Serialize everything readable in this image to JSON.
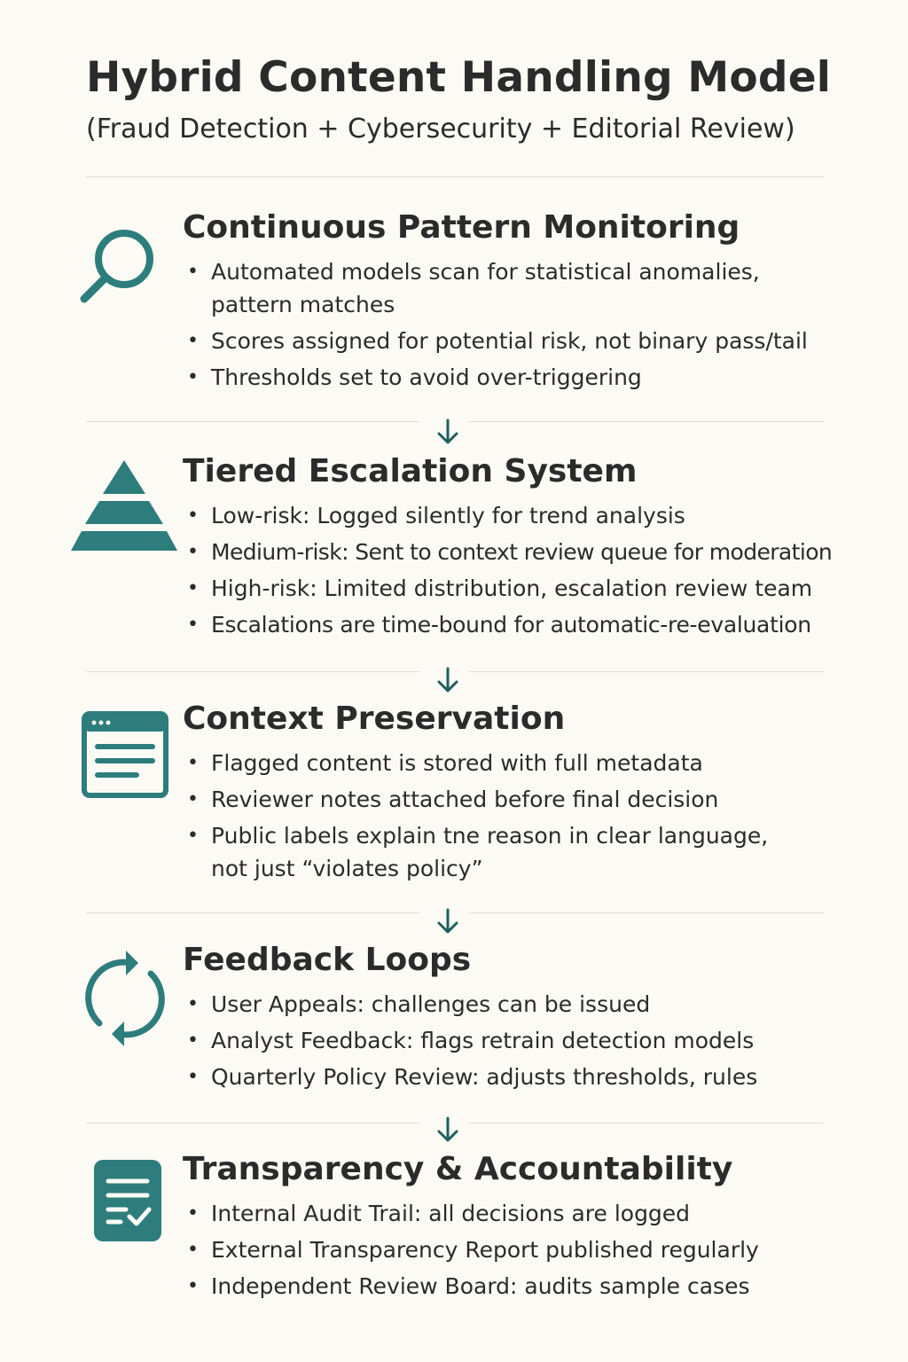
{
  "header": {
    "title": "Hybrid Content Handling Model",
    "subtitle": "(Fraud Detection + Cybersecurity + Editorial Review)"
  },
  "colors": {
    "accent": "#2e7d7d",
    "text": "#2b2b2b",
    "background": "#fbfaf5",
    "divider": "#dcdcd6"
  },
  "sections": [
    {
      "icon": "magnifier-icon",
      "title": "Continuous Pattern Monitoring",
      "bullets": [
        "Automated models scan for statistical anomalies, pattern matches",
        "Scores assigned for potential risk, not binary pass/tail",
        "Thresholds set to avoid over-triggering"
      ]
    },
    {
      "icon": "pyramid-icon",
      "title": "Tiered Escalation System",
      "bullets": [
        "Low-risk: Logged silently for trend analysis",
        "Medium-risk: Sent to context review queue for moderation",
        "High-risk: Limited distribution, escalation review team",
        "Escalations are time-bound for automatic-re-evaluation"
      ]
    },
    {
      "icon": "document-window-icon",
      "title": "Context Preservation",
      "bullets": [
        "Flagged content is stored with full metadata",
        "Reviewer notes attached before final decision",
        "Public labels explain tne reason in clear language, not just “violates policy”"
      ]
    },
    {
      "icon": "refresh-cycle-icon",
      "title": "Feedback Loops",
      "bullets": [
        "User Appeals: challenges can be issued",
        "Analyst Feedback: flags retrain detection models",
        "Quarterly Policy Review: adjusts thresholds, rules"
      ]
    },
    {
      "icon": "checklist-icon",
      "title": "Transparency & Accountability",
      "bullets": [
        "Internal Audit Trail: all decisions are logged",
        "External Transparency Report published regularly",
        "Independent Review Board: audits sample cases"
      ]
    }
  ]
}
